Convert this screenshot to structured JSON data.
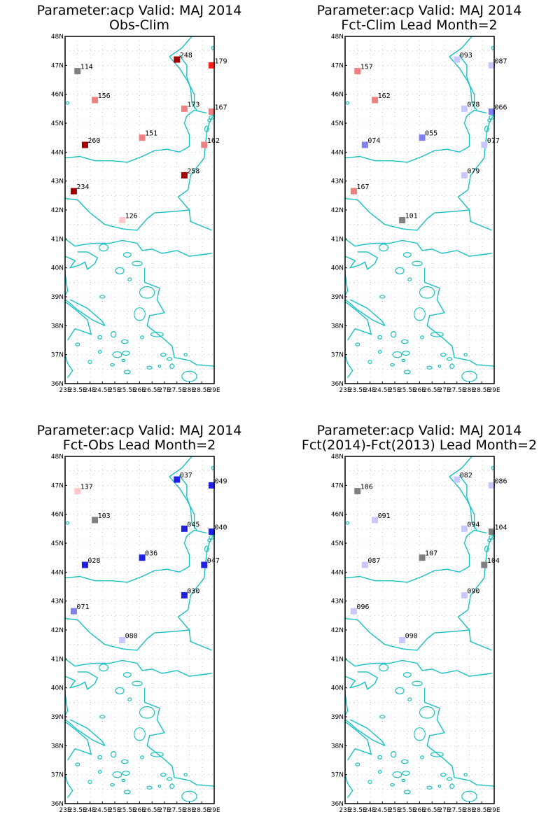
{
  "figure": {
    "panels": [
      {
        "title1": "Parameter:acp Valid: MAJ 2014",
        "title2": "Obs-Clim"
      },
      {
        "title1": "Parameter:acp Valid: MAJ 2014",
        "title2": "Fct-Clim Lead Month=2"
      },
      {
        "title1": "Parameter:acp Valid: MAJ 2014",
        "title2": "Fct-Obs Lead Month=2"
      },
      {
        "title1": "Parameter:acp Valid: MAJ 2014",
        "title2": "Fct(2014)-Fct(2013) Lead Month=2"
      }
    ],
    "lat_ticks": [
      "48N",
      "47N",
      "46N",
      "45N",
      "44N",
      "43N",
      "42N",
      "41N",
      "40N",
      "39N",
      "38N",
      "37N",
      "36N"
    ],
    "lon_ticks": [
      "23E",
      "23.5E",
      "24E",
      "24.5E",
      "25E",
      "25.5E",
      "26E",
      "26.5E",
      "27E",
      "27.5E",
      "28E",
      "28.5E",
      "29E"
    ],
    "colors": {
      "coast": "#19c0c0",
      "grid": "#a0a0a0",
      "frame": "#000000"
    }
  },
  "chart_data": [
    {
      "type": "scatter",
      "title": "Parameter:acp Valid: MAJ 2014 Obs-Clim",
      "xlim": [
        23,
        29
      ],
      "ylim": [
        36,
        48
      ],
      "points": [
        {
          "lon": 23.5,
          "lat": 46.8,
          "label": "114",
          "color": "#808080"
        },
        {
          "lon": 24.2,
          "lat": 45.8,
          "label": "156",
          "color": "#f08080"
        },
        {
          "lon": 27.5,
          "lat": 47.2,
          "label": "248",
          "color": "#a00000"
        },
        {
          "lon": 28.9,
          "lat": 47.0,
          "label": "179",
          "color": "#ff2020"
        },
        {
          "lon": 27.8,
          "lat": 45.5,
          "label": "173",
          "color": "#f08080"
        },
        {
          "lon": 28.9,
          "lat": 45.4,
          "label": "167",
          "color": "#f08080"
        },
        {
          "lon": 23.8,
          "lat": 44.25,
          "label": "260",
          "color": "#a00000"
        },
        {
          "lon": 26.1,
          "lat": 44.5,
          "label": "151",
          "color": "#f08080"
        },
        {
          "lon": 28.6,
          "lat": 44.25,
          "label": "162",
          "color": "#f08080"
        },
        {
          "lon": 27.8,
          "lat": 43.2,
          "label": "258",
          "color": "#a00000"
        },
        {
          "lon": 23.35,
          "lat": 42.65,
          "label": "234",
          "color": "#a00000"
        },
        {
          "lon": 25.3,
          "lat": 41.65,
          "label": "126",
          "color": "#ffc8c8"
        }
      ]
    },
    {
      "type": "scatter",
      "title": "Parameter:acp Valid: MAJ 2014 Fct-Clim Lead Month=2",
      "xlim": [
        23,
        29
      ],
      "ylim": [
        36,
        48
      ],
      "points": [
        {
          "lon": 23.5,
          "lat": 46.8,
          "label": "157",
          "color": "#f08080"
        },
        {
          "lon": 24.2,
          "lat": 45.8,
          "label": "162",
          "color": "#f08080"
        },
        {
          "lon": 27.5,
          "lat": 47.2,
          "label": "093",
          "color": "#c8c8ff"
        },
        {
          "lon": 28.9,
          "lat": 47.0,
          "label": "087",
          "color": "#c8c8ff"
        },
        {
          "lon": 27.8,
          "lat": 45.5,
          "label": "078",
          "color": "#c8c8ff"
        },
        {
          "lon": 28.9,
          "lat": 45.4,
          "label": "066",
          "color": "#8080f0"
        },
        {
          "lon": 23.8,
          "lat": 44.25,
          "label": "074",
          "color": "#8080f0"
        },
        {
          "lon": 26.1,
          "lat": 44.5,
          "label": "055",
          "color": "#8080f0"
        },
        {
          "lon": 28.6,
          "lat": 44.25,
          "label": "077",
          "color": "#c8c8ff"
        },
        {
          "lon": 27.8,
          "lat": 43.2,
          "label": "079",
          "color": "#c8c8ff"
        },
        {
          "lon": 23.35,
          "lat": 42.65,
          "label": "167",
          "color": "#f08080"
        },
        {
          "lon": 25.3,
          "lat": 41.65,
          "label": "101",
          "color": "#808080"
        }
      ]
    },
    {
      "type": "scatter",
      "title": "Parameter:acp Valid: MAJ 2014 Fct-Obs Lead Month=2",
      "xlim": [
        23,
        29
      ],
      "ylim": [
        36,
        48
      ],
      "points": [
        {
          "lon": 23.5,
          "lat": 46.8,
          "label": "137",
          "color": "#ffc8c8"
        },
        {
          "lon": 24.2,
          "lat": 45.8,
          "label": "103",
          "color": "#808080"
        },
        {
          "lon": 27.5,
          "lat": 47.2,
          "label": "037",
          "color": "#2020e0"
        },
        {
          "lon": 28.9,
          "lat": 47.0,
          "label": "049",
          "color": "#2020e0"
        },
        {
          "lon": 27.8,
          "lat": 45.5,
          "label": "045",
          "color": "#2020e0"
        },
        {
          "lon": 28.9,
          "lat": 45.4,
          "label": "040",
          "color": "#2020e0"
        },
        {
          "lon": 23.8,
          "lat": 44.25,
          "label": "028",
          "color": "#2020e0"
        },
        {
          "lon": 26.1,
          "lat": 44.5,
          "label": "036",
          "color": "#2020e0"
        },
        {
          "lon": 28.6,
          "lat": 44.25,
          "label": "047",
          "color": "#2020e0"
        },
        {
          "lon": 27.8,
          "lat": 43.2,
          "label": "030",
          "color": "#2020e0"
        },
        {
          "lon": 23.35,
          "lat": 42.65,
          "label": "071",
          "color": "#8080f0"
        },
        {
          "lon": 25.3,
          "lat": 41.65,
          "label": "080",
          "color": "#c8c8ff"
        }
      ]
    },
    {
      "type": "scatter",
      "title": "Parameter:acp Valid: MAJ 2014 Fct(2014)-Fct(2013) Lead Month=2",
      "xlim": [
        23,
        29
      ],
      "ylim": [
        36,
        48
      ],
      "points": [
        {
          "lon": 23.5,
          "lat": 46.8,
          "label": "106",
          "color": "#808080"
        },
        {
          "lon": 24.2,
          "lat": 45.8,
          "label": "091",
          "color": "#c8c8ff"
        },
        {
          "lon": 27.5,
          "lat": 47.2,
          "label": "082",
          "color": "#c8c8ff"
        },
        {
          "lon": 28.9,
          "lat": 47.0,
          "label": "086",
          "color": "#c8c8ff"
        },
        {
          "lon": 27.8,
          "lat": 45.5,
          "label": "094",
          "color": "#c8c8ff"
        },
        {
          "lon": 28.9,
          "lat": 45.4,
          "label": "104",
          "color": "#808080"
        },
        {
          "lon": 23.8,
          "lat": 44.25,
          "label": "087",
          "color": "#c8c8ff"
        },
        {
          "lon": 26.1,
          "lat": 44.5,
          "label": "107",
          "color": "#808080"
        },
        {
          "lon": 28.6,
          "lat": 44.25,
          "label": "104",
          "color": "#808080"
        },
        {
          "lon": 27.8,
          "lat": 43.2,
          "label": "090",
          "color": "#c8c8ff"
        },
        {
          "lon": 23.35,
          "lat": 42.65,
          "label": "096",
          "color": "#c8c8ff"
        },
        {
          "lon": 25.3,
          "lat": 41.65,
          "label": "090",
          "color": "#c8c8ff"
        }
      ]
    }
  ]
}
